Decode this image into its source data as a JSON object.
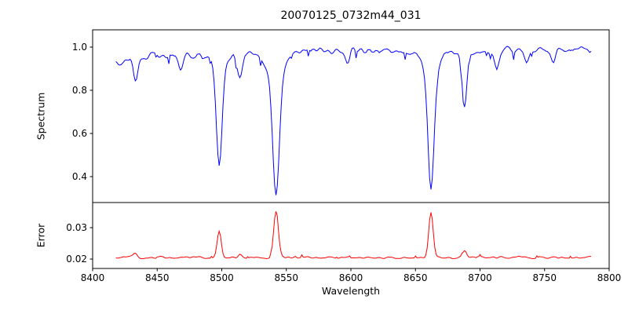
{
  "figure": {
    "background": "#ffffff"
  },
  "chart_data": {
    "type": "line",
    "title": "20070125_0732m44_031",
    "xlabel": "Wavelength",
    "xlim": [
      8400,
      8800
    ],
    "x_ticks": [
      8400,
      8450,
      8500,
      8550,
      8600,
      8650,
      8700,
      8750,
      8800
    ],
    "x_tick_labels": [
      "8400",
      "8450",
      "8500",
      "8550",
      "8600",
      "8650",
      "8700",
      "8750",
      "8800"
    ],
    "x_data_range": [
      8418,
      8786
    ],
    "noise_seed": 20070125,
    "legend": "none",
    "grid": false,
    "panels": [
      {
        "name": "spectrum",
        "ylabel": "Spectrum",
        "ylim": [
          0.28,
          1.08
        ],
        "yticks": [
          0.4,
          0.6,
          0.8,
          1.0
        ],
        "ytick_labels": [
          "0.4",
          "0.6",
          "0.8",
          "1.0"
        ],
        "line_color": "#0000ff",
        "continuum": [
          [
            8418,
            0.93
          ],
          [
            8432,
            0.95
          ],
          [
            8450,
            0.96
          ],
          [
            8475,
            0.965
          ],
          [
            8520,
            0.97
          ],
          [
            8560,
            0.98
          ],
          [
            8600,
            0.985
          ],
          [
            8650,
            0.985
          ],
          [
            8700,
            0.975
          ],
          [
            8745,
            0.985
          ],
          [
            8786,
            0.99
          ]
        ],
        "noise_amplitude": 0.016,
        "absorption_lines": [
          {
            "center": 8433,
            "depth": 0.1,
            "sigma": 1.8,
            "wing_depth": 0.0,
            "wing_sigma": 4,
            "min": 0.86
          },
          {
            "center": 8468,
            "depth": 0.07,
            "sigma": 1.6,
            "wing_depth": 0.0,
            "wing_sigma": 4,
            "min": 0.9
          },
          {
            "center": 8498,
            "depth": 0.46,
            "sigma": 2.2,
            "wing_depth": 0.06,
            "wing_sigma": 5,
            "min": 0.48
          },
          {
            "center": 8514,
            "depth": 0.11,
            "sigma": 1.8,
            "wing_depth": 0.0,
            "wing_sigma": 4,
            "min": 0.87
          },
          {
            "center": 8542,
            "depth": 0.57,
            "sigma": 2.6,
            "wing_depth": 0.1,
            "wing_sigma": 7,
            "min": 0.33
          },
          {
            "center": 8598,
            "depth": 0.06,
            "sigma": 1.6,
            "wing_depth": 0.0,
            "wing_sigma": 4,
            "min": 0.92
          },
          {
            "center": 8662,
            "depth": 0.54,
            "sigma": 2.4,
            "wing_depth": 0.09,
            "wing_sigma": 6,
            "min": 0.37
          },
          {
            "center": 8688,
            "depth": 0.24,
            "sigma": 1.8,
            "wing_depth": 0.0,
            "wing_sigma": 4,
            "min": 0.74
          },
          {
            "center": 8713,
            "depth": 0.06,
            "sigma": 1.6,
            "wing_depth": 0.0,
            "wing_sigma": 4,
            "min": 0.92
          },
          {
            "center": 8736,
            "depth": 0.05,
            "sigma": 1.6,
            "wing_depth": 0.0,
            "wing_sigma": 4,
            "min": 0.93
          },
          {
            "center": 8757,
            "depth": 0.06,
            "sigma": 1.6,
            "wing_depth": 0.0,
            "wing_sigma": 4,
            "min": 0.93
          }
        ]
      },
      {
        "name": "error",
        "ylabel": "Error",
        "ylim": [
          0.017,
          0.038
        ],
        "yticks": [
          0.02,
          0.03
        ],
        "ytick_labels": [
          "0.02",
          "0.03"
        ],
        "line_color": "#ff0000",
        "baseline": 0.0205,
        "noise_amplitude": 0.00035,
        "peaks": [
          {
            "center": 8433,
            "height": 0.0012,
            "sigma": 1.6,
            "max": 0.0217
          },
          {
            "center": 8498,
            "height": 0.0085,
            "sigma": 1.6,
            "max": 0.029
          },
          {
            "center": 8514,
            "height": 0.0012,
            "sigma": 1.5,
            "max": 0.0217
          },
          {
            "center": 8542,
            "height": 0.0145,
            "sigma": 1.8,
            "max": 0.035
          },
          {
            "center": 8662,
            "height": 0.0145,
            "sigma": 1.7,
            "max": 0.035
          },
          {
            "center": 8688,
            "height": 0.002,
            "sigma": 1.5,
            "max": 0.0225
          }
        ]
      }
    ]
  }
}
